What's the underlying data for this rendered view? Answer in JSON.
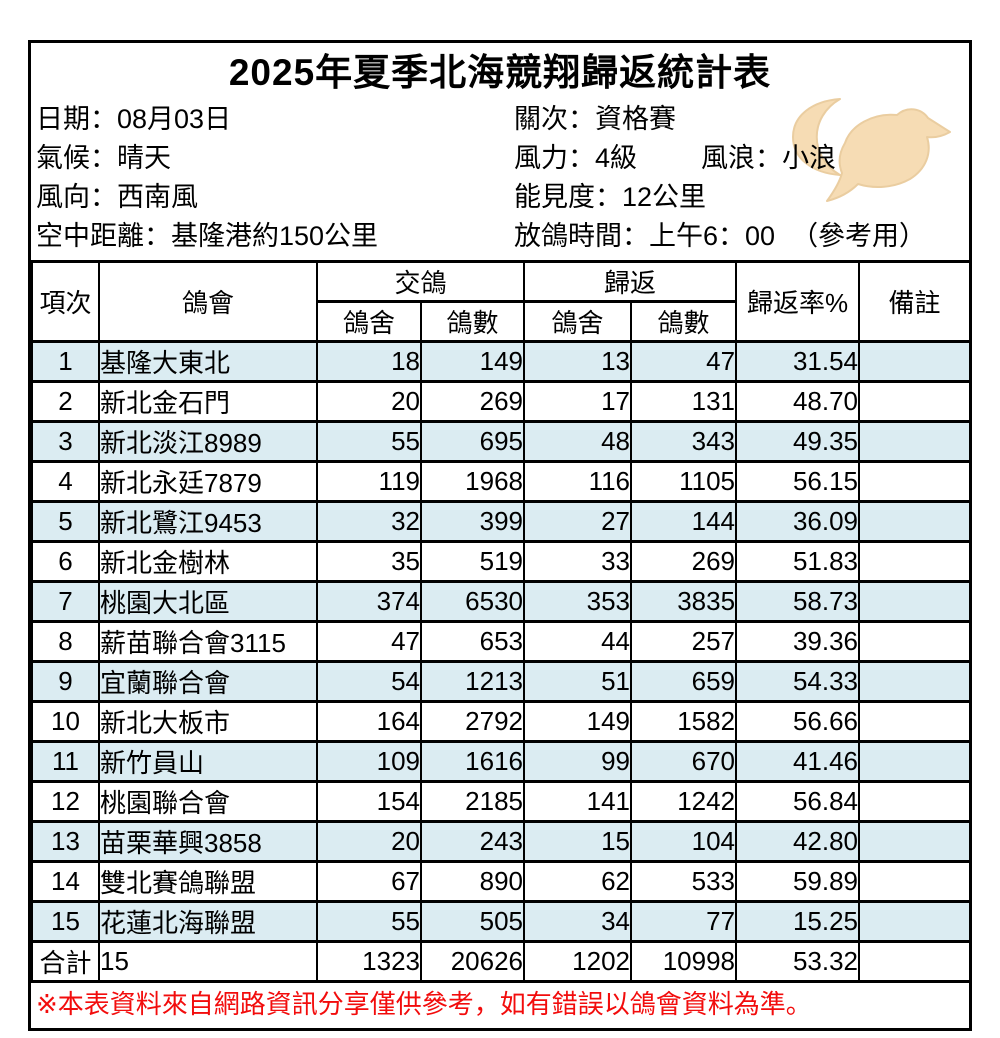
{
  "title": "2025年夏季北海競翔歸返統計表",
  "info_rows": [
    {
      "left": "日期：08月03日",
      "right": "關次：資格賽",
      "right2": ""
    },
    {
      "left": "氣候：晴天",
      "right": "風力：4級",
      "right2": "風浪：小浪"
    },
    {
      "left": "風向：西南風",
      "right": "能見度：12公里",
      "right2": ""
    },
    {
      "left": "空中距離：基隆港約150公里",
      "right": "放鴿時間：上午6：00",
      "right2": "（參考用）"
    }
  ],
  "table": {
    "header": {
      "item": "項次",
      "club": "鴿會",
      "sent_group": "交鴿",
      "returned_group": "歸返",
      "sub": [
        "鴿舍",
        "鴿數",
        "鴿舍",
        "鴿數"
      ],
      "rate": "歸返率%",
      "note": "備註"
    },
    "rows": [
      {
        "no": "1",
        "club": "基隆大東北",
        "sent_lofts": "18",
        "sent_birds": "149",
        "ret_lofts": "13",
        "ret_birds": "47",
        "rate": "31.54",
        "note": ""
      },
      {
        "no": "2",
        "club": "新北金石門",
        "sent_lofts": "20",
        "sent_birds": "269",
        "ret_lofts": "17",
        "ret_birds": "131",
        "rate": "48.70",
        "note": ""
      },
      {
        "no": "3",
        "club": "新北淡江8989",
        "sent_lofts": "55",
        "sent_birds": "695",
        "ret_lofts": "48",
        "ret_birds": "343",
        "rate": "49.35",
        "note": ""
      },
      {
        "no": "4",
        "club": "新北永廷7879",
        "sent_lofts": "119",
        "sent_birds": "1968",
        "ret_lofts": "116",
        "ret_birds": "1105",
        "rate": "56.15",
        "note": ""
      },
      {
        "no": "5",
        "club": "新北鷺江9453",
        "sent_lofts": "32",
        "sent_birds": "399",
        "ret_lofts": "27",
        "ret_birds": "144",
        "rate": "36.09",
        "note": ""
      },
      {
        "no": "6",
        "club": "新北金樹林",
        "sent_lofts": "35",
        "sent_birds": "519",
        "ret_lofts": "33",
        "ret_birds": "269",
        "rate": "51.83",
        "note": ""
      },
      {
        "no": "7",
        "club": "桃園大北區",
        "sent_lofts": "374",
        "sent_birds": "6530",
        "ret_lofts": "353",
        "ret_birds": "3835",
        "rate": "58.73",
        "note": ""
      },
      {
        "no": "8",
        "club": "薪苗聯合會3115",
        "sent_lofts": "47",
        "sent_birds": "653",
        "ret_lofts": "44",
        "ret_birds": "257",
        "rate": "39.36",
        "note": ""
      },
      {
        "no": "9",
        "club": "宜蘭聯合會",
        "sent_lofts": "54",
        "sent_birds": "1213",
        "ret_lofts": "51",
        "ret_birds": "659",
        "rate": "54.33",
        "note": ""
      },
      {
        "no": "10",
        "club": "新北大板市",
        "sent_lofts": "164",
        "sent_birds": "2792",
        "ret_lofts": "149",
        "ret_birds": "1582",
        "rate": "56.66",
        "note": ""
      },
      {
        "no": "11",
        "club": "新竹員山",
        "sent_lofts": "109",
        "sent_birds": "1616",
        "ret_lofts": "99",
        "ret_birds": "670",
        "rate": "41.46",
        "note": ""
      },
      {
        "no": "12",
        "club": "桃園聯合會",
        "sent_lofts": "154",
        "sent_birds": "2185",
        "ret_lofts": "141",
        "ret_birds": "1242",
        "rate": "56.84",
        "note": ""
      },
      {
        "no": "13",
        "club": "苗栗華興3858",
        "sent_lofts": "20",
        "sent_birds": "243",
        "ret_lofts": "15",
        "ret_birds": "104",
        "rate": "42.80",
        "note": ""
      },
      {
        "no": "14",
        "club": "雙北賽鴿聯盟",
        "sent_lofts": "67",
        "sent_birds": "890",
        "ret_lofts": "62",
        "ret_birds": "533",
        "rate": "59.89",
        "note": ""
      },
      {
        "no": "15",
        "club": "花蓮北海聯盟",
        "sent_lofts": "55",
        "sent_birds": "505",
        "ret_lofts": "34",
        "ret_birds": "77",
        "rate": "15.25",
        "note": ""
      }
    ],
    "total": {
      "no": "合計",
      "club": "15",
      "sent_lofts": "1323",
      "sent_birds": "20626",
      "ret_lofts": "1202",
      "ret_birds": "10998",
      "rate": "53.32",
      "note": ""
    }
  },
  "footer_note": "※本表資料來自網路資訊分享僅供參考，如有錯誤以鴿會資料為準。",
  "icons": {
    "dove": "dove-icon"
  },
  "colors": {
    "row_alt": "#dbecf2",
    "note_red": "#f20c0c",
    "dove_fill": "#f6dcb4",
    "dove_edge": "#eacda0",
    "border": "#000000"
  }
}
